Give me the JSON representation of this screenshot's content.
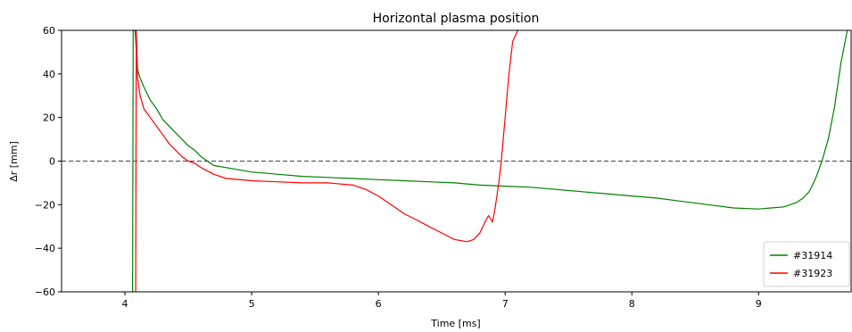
{
  "chart_data": {
    "type": "line",
    "title": "Horizontal plasma position",
    "xlabel": "Time [ms]",
    "ylabel": "Δr [mm]",
    "xlim": [
      3.5,
      9.73
    ],
    "ylim": [
      -60,
      60
    ],
    "xticks": [
      4,
      5,
      6,
      7,
      8,
      9
    ],
    "yticks": [
      -60,
      -40,
      -20,
      0,
      20,
      40,
      60
    ],
    "xtick_labels": [
      "4",
      "5",
      "6",
      "7",
      "8",
      "9"
    ],
    "ytick_labels": [
      "−60",
      "−40",
      "−20",
      "0",
      "20",
      "40",
      "60"
    ],
    "zero_line": true,
    "grid": false,
    "legend_position": "bottom-right",
    "series": [
      {
        "name": "#31914",
        "color": "#008000",
        "x": [
          4.06,
          4.065,
          4.08,
          4.1,
          4.12,
          4.15,
          4.2,
          4.25,
          4.3,
          4.35,
          4.4,
          4.45,
          4.5,
          4.55,
          4.6,
          4.65,
          4.7,
          4.8,
          4.9,
          5.0,
          5.2,
          5.4,
          5.6,
          5.8,
          6.0,
          6.2,
          6.4,
          6.6,
          6.8,
          7.0,
          7.2,
          7.4,
          7.6,
          7.8,
          8.0,
          8.2,
          8.4,
          8.6,
          8.8,
          9.0,
          9.1,
          9.2,
          9.3,
          9.35,
          9.4,
          9.45,
          9.5,
          9.55,
          9.6,
          9.65,
          9.7
        ],
        "y": [
          -60,
          60,
          60,
          42,
          38,
          34,
          28,
          24,
          19,
          16,
          13,
          10,
          7,
          5,
          2,
          0,
          -2,
          -3,
          -4,
          -5,
          -6,
          -7,
          -7.5,
          -8,
          -8.5,
          -9,
          -9.5,
          -10,
          -11,
          -11.5,
          -12,
          -13,
          -14,
          -15,
          -16,
          -17,
          -18.5,
          -20,
          -21.5,
          -22,
          -21.5,
          -21,
          -19,
          -17,
          -14,
          -8,
          0,
          10,
          25,
          45,
          60
        ]
      },
      {
        "name": "#31923",
        "color": "#ff0000",
        "x": [
          4.085,
          4.09,
          4.1,
          4.12,
          4.15,
          4.2,
          4.25,
          4.3,
          4.35,
          4.4,
          4.45,
          4.5,
          4.55,
          4.6,
          4.7,
          4.8,
          5.0,
          5.2,
          5.4,
          5.6,
          5.8,
          5.9,
          6.0,
          6.1,
          6.2,
          6.3,
          6.4,
          6.5,
          6.6,
          6.7,
          6.75,
          6.8,
          6.85,
          6.87,
          6.9,
          6.92,
          6.95,
          6.97,
          7.0,
          7.03,
          7.06,
          7.1
        ],
        "y": [
          -60,
          60,
          38,
          30,
          24,
          20,
          16,
          12,
          8,
          5,
          2,
          0,
          -1,
          -3,
          -6,
          -8,
          -9,
          -9.5,
          -10,
          -10,
          -11,
          -13,
          -16,
          -20,
          -24,
          -27,
          -30,
          -33,
          -36,
          -37,
          -36,
          -33,
          -27,
          -25,
          -28,
          -22,
          -10,
          0,
          20,
          40,
          55,
          60
        ]
      }
    ]
  }
}
